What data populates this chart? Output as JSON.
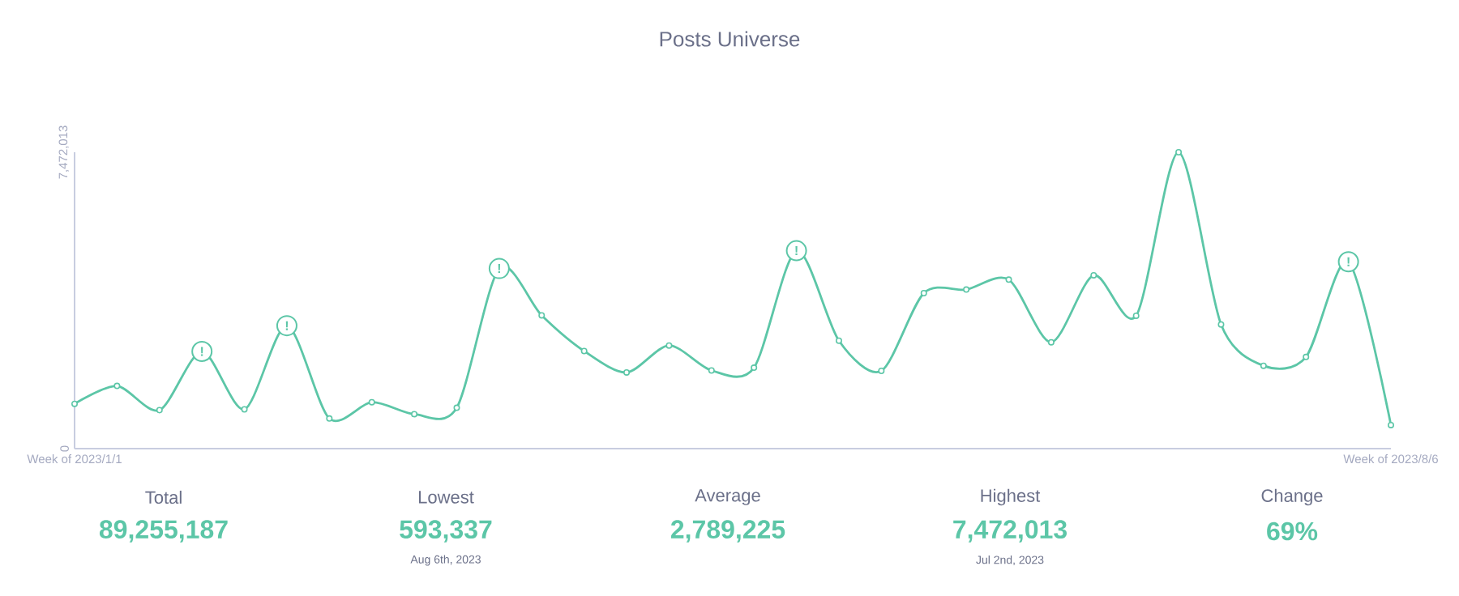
{
  "chart_data": {
    "type": "line",
    "title": "Posts Universe",
    "categories": [
      "Week of 2023/1/1",
      null,
      null,
      null,
      null,
      null,
      null,
      null,
      null,
      null,
      null,
      null,
      null,
      null,
      null,
      null,
      null,
      null,
      null,
      null,
      null,
      null,
      null,
      null,
      null,
      null,
      null,
      null,
      null,
      null,
      null,
      "Week of 2023/8/6"
    ],
    "values": [
      1130000,
      1580000,
      970000,
      2450000,
      990000,
      3100000,
      760000,
      1170000,
      870000,
      1030000,
      4540000,
      3360000,
      2460000,
      1920000,
      2600000,
      1970000,
      2040000,
      4990000,
      2720000,
      1960000,
      3920000,
      4010000,
      4260000,
      2680000,
      4370000,
      3350000,
      7472013,
      3130000,
      2090000,
      2310000,
      4710000,
      593337
    ],
    "color": "#5cc6a7",
    "marker": "circle",
    "line_style": "solid",
    "ylim": [
      0,
      7472013
    ],
    "yticks": [
      0,
      {
        "value": 7472013,
        "label": "7,472,013"
      }
    ],
    "annotations": [
      "Total",
      "89,255,187",
      "Lowest",
      "593,337",
      "Aug 6th, 2023",
      "Average",
      "2,789,225",
      "Highest",
      "7,472,013",
      "Jul 2nd, 2023",
      "Change",
      "69%",
      {
        "text": "!",
        "y": 2450000
      },
      {
        "text": "!",
        "y": 3100000
      },
      {
        "text": "!",
        "y": 4540000
      },
      {
        "text": "!",
        "y": 4990000
      },
      {
        "text": "!",
        "y": 4710000
      }
    ]
  }
}
